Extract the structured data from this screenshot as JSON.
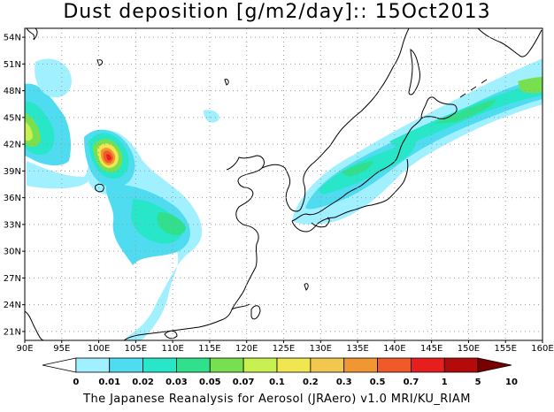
{
  "title": "Dust deposition [g/m2/day]:: 15Oct2013",
  "credit": "The Japanese Reanalysis for Aerosol (JRAero) v1.0 MRI/KU_RIAM",
  "map": {
    "lon_range": [
      90,
      160
    ],
    "lat_range": [
      20,
      55
    ],
    "x_ticks": [
      "90E",
      "95E",
      "100E",
      "105E",
      "110E",
      "115E",
      "120E",
      "125E",
      "130E",
      "135E",
      "140E",
      "145E",
      "150E",
      "155E",
      "160E"
    ],
    "y_ticks": [
      "21N",
      "24N",
      "27N",
      "30N",
      "33N",
      "36N",
      "39N",
      "42N",
      "45N",
      "48N",
      "51N",
      "54N"
    ],
    "grid": "dotted"
  },
  "colorbar": {
    "labels": [
      "0",
      "0.01",
      "0.02",
      "0.03",
      "0.05",
      "0.07",
      "0.1",
      "0.2",
      "0.3",
      "0.5",
      "0.7",
      "1",
      "5",
      "10"
    ],
    "colors": [
      "#ffffff",
      "#a0f0ff",
      "#50dcf0",
      "#28e6c8",
      "#30e08c",
      "#78e050",
      "#c8f050",
      "#f0e650",
      "#f0c850",
      "#f09632",
      "#f05a28",
      "#e61e1e",
      "#b40a0a",
      "#780000"
    ]
  },
  "plumes": [
    {
      "lon": 91.5,
      "lat": 43.5,
      "level": 6
    },
    {
      "lon": 102.5,
      "lat": 40.2,
      "level": 11
    },
    {
      "lon": 108.0,
      "lat": 32.5,
      "level": 5
    },
    {
      "lon": 135.0,
      "lat": 38.0,
      "level": 7
    },
    {
      "lon": 143.0,
      "lat": 42.5,
      "level": 6
    },
    {
      "lon": 157.5,
      "lat": 48.5,
      "level": 5
    }
  ]
}
